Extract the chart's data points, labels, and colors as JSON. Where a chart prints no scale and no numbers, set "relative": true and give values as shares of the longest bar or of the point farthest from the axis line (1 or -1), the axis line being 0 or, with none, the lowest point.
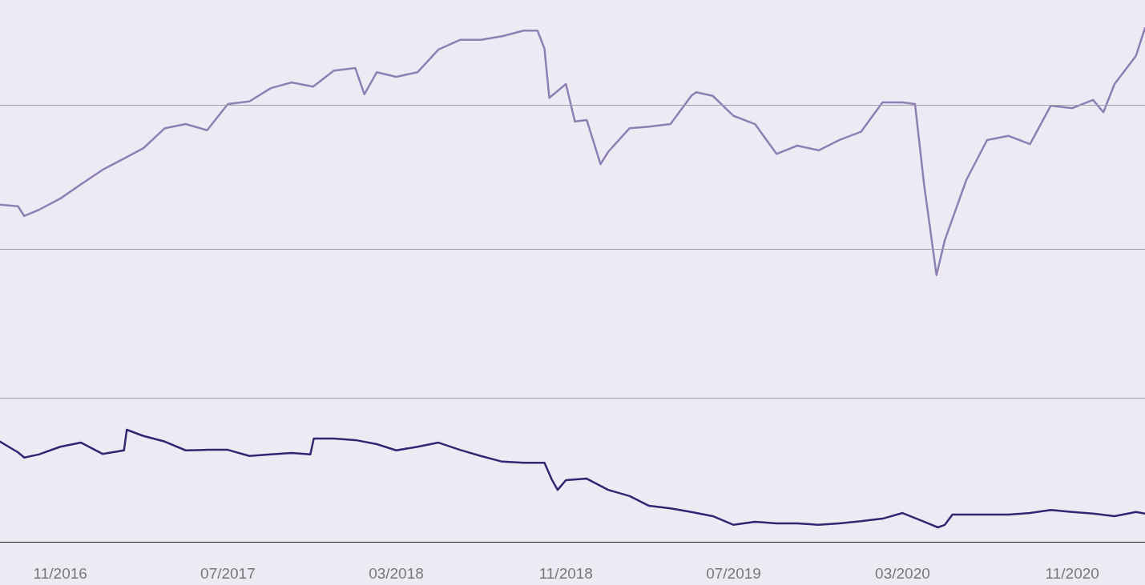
{
  "chart_data": {
    "type": "line",
    "relative": true,
    "xlim": [
      "2016-08-06",
      "2021-02-14"
    ],
    "xticks": [
      {
        "value": "2016-11-01",
        "label": "11/2016"
      },
      {
        "value": "2017-07-01",
        "label": "07/2017"
      },
      {
        "value": "2018-03-01",
        "label": "03/2018"
      },
      {
        "value": "2018-11-01",
        "label": "11/2018"
      },
      {
        "value": "2019-07-01",
        "label": "07/2019"
      },
      {
        "value": "2020-03-01",
        "label": "03/2020"
      },
      {
        "value": "2020-11-01",
        "label": "11/2020"
      }
    ],
    "ref_lines": [
      {
        "axis": "y",
        "value": 0.2835,
        "label": null,
        "color": "#a09da6"
      },
      {
        "axis": "y",
        "value": 0.567,
        "label": null,
        "color": "#a09da6"
      },
      {
        "axis": "y",
        "value": 0.852,
        "label": null,
        "color": "#a09da6"
      }
    ],
    "marker": "none",
    "line_style": "solid",
    "series": [
      {
        "color": "#8c80b4",
        "x": [
          "2016-08-06",
          "2016-09-01",
          "2016-09-10",
          "2016-10-01",
          "2016-11-01",
          "2016-12-01",
          "2017-01-01",
          "2017-02-01",
          "2017-03-01",
          "2017-04-01",
          "2017-05-01",
          "2017-06-01",
          "2017-07-01",
          "2017-08-01",
          "2017-09-01",
          "2017-10-01",
          "2017-11-01",
          "2017-12-01",
          "2018-01-01",
          "2018-01-14",
          "2018-02-01",
          "2018-03-01",
          "2018-04-01",
          "2018-05-01",
          "2018-06-01",
          "2018-07-01",
          "2018-08-01",
          "2018-09-01",
          "2018-09-21",
          "2018-10-01",
          "2018-10-08",
          "2018-11-01",
          "2018-11-14",
          "2018-12-01",
          "2018-12-21",
          "2019-01-01",
          "2019-02-01",
          "2019-03-01",
          "2019-04-01",
          "2019-05-01",
          "2019-05-08",
          "2019-06-01",
          "2019-07-01",
          "2019-08-01",
          "2019-09-01",
          "2019-10-01",
          "2019-11-01",
          "2019-12-01",
          "2020-01-01",
          "2020-02-01",
          "2020-03-01",
          "2020-03-19",
          "2020-04-01",
          "2020-04-19",
          "2020-05-01",
          "2020-06-01",
          "2020-07-01",
          "2020-08-01",
          "2020-09-01",
          "2020-10-01",
          "2020-11-01",
          "2020-12-01",
          "2020-12-16",
          "2021-01-01",
          "2021-02-01",
          "2021-02-14"
        ],
        "values": [
          0.656,
          0.653,
          0.634,
          0.646,
          0.668,
          0.696,
          0.724,
          0.746,
          0.766,
          0.805,
          0.813,
          0.801,
          0.852,
          0.857,
          0.883,
          0.894,
          0.886,
          0.917,
          0.922,
          0.871,
          0.914,
          0.905,
          0.914,
          0.958,
          0.977,
          0.977,
          0.984,
          0.995,
          0.995,
          0.96,
          0.864,
          0.891,
          0.818,
          0.821,
          0.735,
          0.759,
          0.805,
          0.808,
          0.813,
          0.868,
          0.875,
          0.868,
          0.829,
          0.813,
          0.755,
          0.771,
          0.762,
          0.782,
          0.798,
          0.855,
          0.855,
          0.852,
          0.696,
          0.519,
          0.587,
          0.704,
          0.782,
          0.79,
          0.774,
          0.849,
          0.844,
          0.86,
          0.836,
          0.891,
          0.946,
          1
        ]
      },
      {
        "color": "#2e2772",
        "x": [
          "2016-08-06",
          "2016-09-01",
          "2016-09-10",
          "2016-10-01",
          "2016-11-01",
          "2016-12-01",
          "2017-01-01",
          "2017-02-01",
          "2017-02-05",
          "2017-03-01",
          "2017-04-01",
          "2017-05-01",
          "2017-06-01",
          "2017-07-01",
          "2017-08-01",
          "2017-09-01",
          "2017-10-01",
          "2017-10-28",
          "2017-11-02",
          "2017-12-01",
          "2018-01-01",
          "2018-02-01",
          "2018-03-01",
          "2018-04-01",
          "2018-05-01",
          "2018-06-01",
          "2018-07-01",
          "2018-08-01",
          "2018-09-01",
          "2018-10-01",
          "2018-10-12",
          "2018-10-20",
          "2018-11-01",
          "2018-12-01",
          "2019-01-01",
          "2019-02-01",
          "2019-03-01",
          "2019-04-01",
          "2019-05-01",
          "2019-06-01",
          "2019-07-01",
          "2019-08-01",
          "2019-09-01",
          "2019-10-01",
          "2019-11-01",
          "2019-12-01",
          "2020-01-01",
          "2020-02-01",
          "2020-03-01",
          "2020-04-01",
          "2020-04-21",
          "2020-05-01",
          "2020-05-12",
          "2020-06-01",
          "2020-07-01",
          "2020-08-01",
          "2020-09-01",
          "2020-10-01",
          "2020-11-01",
          "2020-12-01",
          "2021-01-01",
          "2021-02-01",
          "2021-02-14"
        ],
        "values": [
          0.195,
          0.174,
          0.164,
          0.17,
          0.185,
          0.193,
          0.171,
          0.178,
          0.218,
          0.206,
          0.195,
          0.178,
          0.179,
          0.179,
          0.167,
          0.17,
          0.173,
          0.17,
          0.201,
          0.201,
          0.198,
          0.19,
          0.178,
          0.185,
          0.193,
          0.179,
          0.167,
          0.156,
          0.154,
          0.154,
          0.12,
          0.101,
          0.12,
          0.123,
          0.101,
          0.089,
          0.07,
          0.065,
          0.058,
          0.05,
          0.033,
          0.039,
          0.036,
          0.036,
          0.033,
          0.036,
          0.04,
          0.045,
          0.056,
          0.039,
          0.028,
          0.033,
          0.053,
          0.053,
          0.053,
          0.053,
          0.056,
          0.062,
          0.058,
          0.055,
          0.05,
          0.058,
          0.055
        ]
      }
    ]
  }
}
